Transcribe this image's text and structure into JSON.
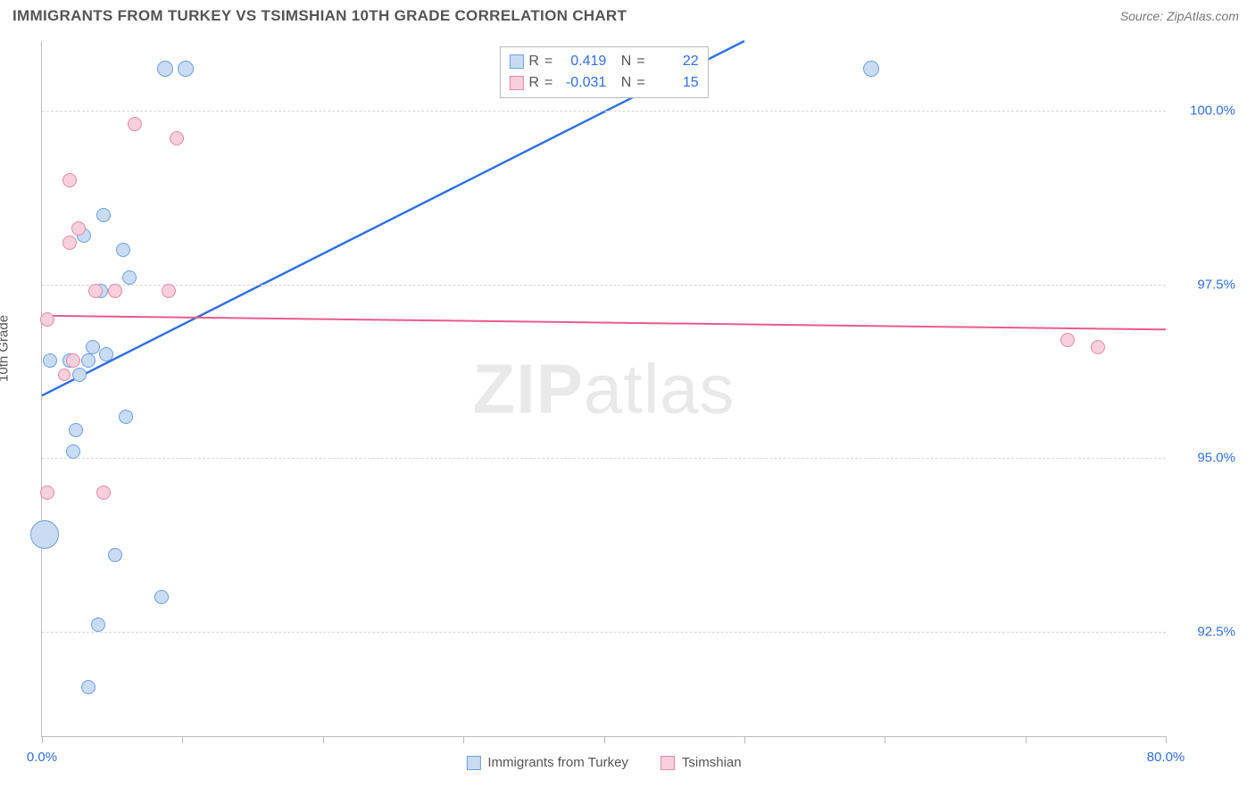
{
  "title": "IMMIGRANTS FROM TURKEY VS TSIMSHIAN 10TH GRADE CORRELATION CHART",
  "source_prefix": "Source: ",
  "source": "ZipAtlas.com",
  "watermark_bold": "ZIP",
  "watermark_rest": "atlas",
  "ylabel": "10th Grade",
  "chart": {
    "type": "scatter",
    "background_color": "#ffffff",
    "grid_color": "#d7d7d7",
    "axis_color": "#bbbbbb",
    "xlim": [
      0,
      80
    ],
    "ylim": [
      91,
      101
    ],
    "x_ticks": [
      0,
      10,
      20,
      30,
      40,
      50,
      60,
      70,
      80
    ],
    "x_tick_labels": {
      "0": "0.0%",
      "80": "80.0%"
    },
    "x_tick_label_color": "#2f6fe0",
    "y_ticks": [
      {
        "v": 92.5,
        "label": "92.5%"
      },
      {
        "v": 95.0,
        "label": "95.0%"
      },
      {
        "v": 97.5,
        "label": "97.5%"
      },
      {
        "v": 100.0,
        "label": "100.0%"
      }
    ],
    "y_tick_label_color": "#2f6fe0",
    "series": [
      {
        "name": "Immigrants from Turkey",
        "color_fill": "#c9dcf4",
        "color_stroke": "#6a9fe3",
        "line_color": "#2f6fe0",
        "line_width": 2.4,
        "R": "0.419",
        "N": "22",
        "reg": {
          "x1": 0,
          "y1": 95.9,
          "x2": 50,
          "y2": 101.0
        },
        "points": [
          {
            "x": 0.2,
            "y": 93.9,
            "r": 16
          },
          {
            "x": 0.6,
            "y": 96.4,
            "r": 8
          },
          {
            "x": 3.3,
            "y": 96.4,
            "r": 8
          },
          {
            "x": 2.0,
            "y": 96.4,
            "r": 8
          },
          {
            "x": 3.6,
            "y": 96.6,
            "r": 8
          },
          {
            "x": 4.6,
            "y": 96.5,
            "r": 8
          },
          {
            "x": 3.0,
            "y": 98.2,
            "r": 8
          },
          {
            "x": 4.4,
            "y": 98.5,
            "r": 8
          },
          {
            "x": 5.8,
            "y": 98.0,
            "r": 8
          },
          {
            "x": 6.0,
            "y": 95.6,
            "r": 8
          },
          {
            "x": 8.8,
            "y": 100.6,
            "r": 9
          },
          {
            "x": 10.2,
            "y": 100.6,
            "r": 9
          },
          {
            "x": 2.4,
            "y": 95.4,
            "r": 8
          },
          {
            "x": 2.2,
            "y": 95.1,
            "r": 8
          },
          {
            "x": 3.3,
            "y": 91.7,
            "r": 8
          },
          {
            "x": 4.0,
            "y": 92.6,
            "r": 8
          },
          {
            "x": 8.5,
            "y": 93.0,
            "r": 8
          },
          {
            "x": 5.2,
            "y": 93.6,
            "r": 8
          },
          {
            "x": 59.0,
            "y": 100.6,
            "r": 9
          },
          {
            "x": 2.7,
            "y": 96.2,
            "r": 8
          },
          {
            "x": 4.2,
            "y": 97.4,
            "r": 8
          },
          {
            "x": 6.2,
            "y": 97.6,
            "r": 8
          }
        ]
      },
      {
        "name": "Tsimshian",
        "color_fill": "#f7d0dc",
        "color_stroke": "#e389a7",
        "line_color": "#ea5a8f",
        "line_width": 2.0,
        "R": "-0.031",
        "N": "15",
        "reg": {
          "x1": 0,
          "y1": 97.05,
          "x2": 80,
          "y2": 96.85
        },
        "points": [
          {
            "x": 0.4,
            "y": 97.0,
            "r": 8
          },
          {
            "x": 2.2,
            "y": 96.4,
            "r": 8
          },
          {
            "x": 2.0,
            "y": 98.1,
            "r": 8
          },
          {
            "x": 3.8,
            "y": 97.4,
            "r": 8
          },
          {
            "x": 5.2,
            "y": 97.4,
            "r": 8
          },
          {
            "x": 9.0,
            "y": 97.4,
            "r": 8
          },
          {
            "x": 2.0,
            "y": 99.0,
            "r": 8
          },
          {
            "x": 6.6,
            "y": 99.8,
            "r": 8
          },
          {
            "x": 9.6,
            "y": 99.6,
            "r": 8
          },
          {
            "x": 0.4,
            "y": 94.5,
            "r": 8
          },
          {
            "x": 4.4,
            "y": 94.5,
            "r": 8
          },
          {
            "x": 2.6,
            "y": 98.3,
            "r": 8
          },
          {
            "x": 73.0,
            "y": 96.7,
            "r": 8
          },
          {
            "x": 75.2,
            "y": 96.6,
            "r": 8
          },
          {
            "x": 1.6,
            "y": 96.2,
            "r": 7
          }
        ]
      }
    ],
    "stat_legend": {
      "r_label": "R",
      "n_label": "N",
      "eq": "="
    },
    "bottom_legend": [
      {
        "label": "Immigrants from Turkey",
        "fill": "#c9dcf4",
        "stroke": "#6a9fe3"
      },
      {
        "label": "Tsimshian",
        "fill": "#f7d0dc",
        "stroke": "#e389a7"
      }
    ]
  }
}
